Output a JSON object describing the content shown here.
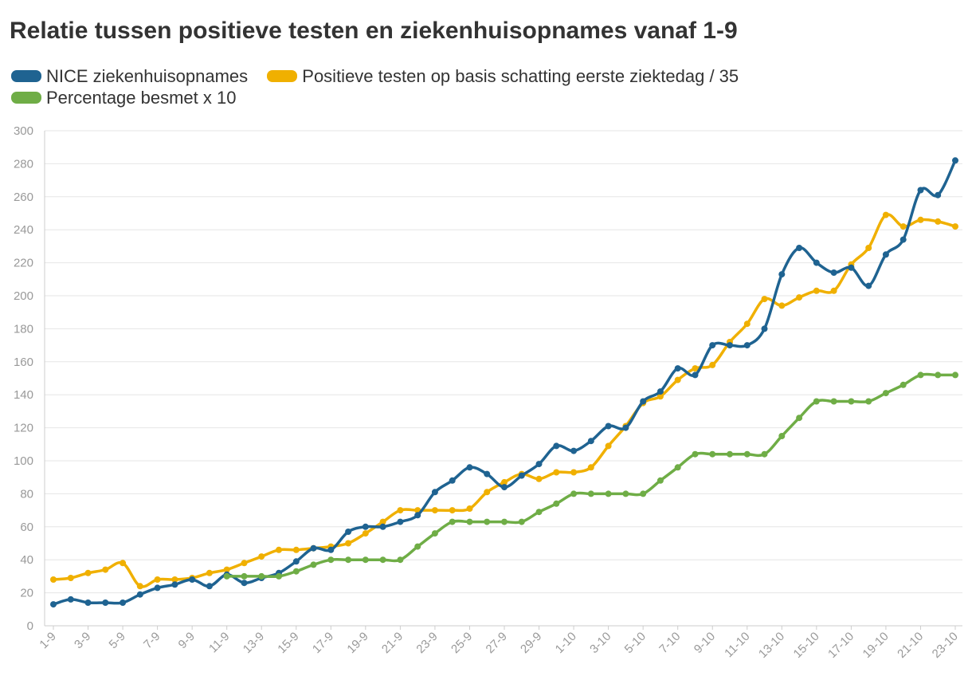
{
  "chart_data": {
    "type": "line",
    "title": "Relatie tussen positieve testen en ziekenhuisopnames vanaf 1-9",
    "xlabel": "",
    "ylabel": "",
    "ylim": [
      0,
      300
    ],
    "y_ticks": [
      0,
      20,
      40,
      60,
      80,
      100,
      120,
      140,
      160,
      180,
      200,
      220,
      240,
      260,
      280,
      300
    ],
    "grid": true,
    "legend_position": "top-left",
    "x": [
      "1-9",
      "2-9",
      "3-9",
      "4-9",
      "5-9",
      "6-9",
      "7-9",
      "8-9",
      "9-9",
      "10-9",
      "11-9",
      "12-9",
      "13-9",
      "14-9",
      "15-9",
      "16-9",
      "17-9",
      "18-9",
      "19-9",
      "20-9",
      "21-9",
      "22-9",
      "23-9",
      "24-9",
      "25-9",
      "26-9",
      "27-9",
      "28-9",
      "29-9",
      "30-9",
      "1-10",
      "2-10",
      "3-10",
      "4-10",
      "5-10",
      "6-10",
      "7-10",
      "8-10",
      "9-10",
      "10-10",
      "11-10",
      "12-10",
      "13-10",
      "14-10",
      "15-10",
      "16-10",
      "17-10",
      "18-10",
      "19-10",
      "20-10",
      "21-10",
      "22-10",
      "23-10"
    ],
    "x_tick_labels": [
      "1-9",
      "3-9",
      "5-9",
      "7-9",
      "9-9",
      "11-9",
      "13-9",
      "15-9",
      "17-9",
      "19-9",
      "21-9",
      "23-9",
      "25-9",
      "27-9",
      "29-9",
      "1-10",
      "3-10",
      "5-10",
      "7-10",
      "9-10",
      "11-10",
      "13-10",
      "15-10",
      "17-10",
      "19-10",
      "21-10",
      "23-10"
    ],
    "series": [
      {
        "name": "NICE ziekenhuisopnames",
        "color": "#1f6391",
        "values": [
          13,
          16,
          14,
          14,
          14,
          19,
          23,
          25,
          28,
          24,
          31,
          26,
          29,
          32,
          39,
          47,
          46,
          57,
          60,
          60,
          63,
          67,
          81,
          88,
          96,
          92,
          84,
          91,
          98,
          109,
          106,
          112,
          121,
          120,
          136,
          142,
          156,
          152,
          170,
          170,
          170,
          180,
          213,
          229,
          220,
          214,
          217,
          206,
          225,
          234,
          264,
          261,
          282
        ]
      },
      {
        "name": "Positieve testen op basis schatting eerste ziektedag / 35",
        "color": "#f0b000",
        "values": [
          28,
          29,
          32,
          34,
          38,
          24,
          28,
          28,
          29,
          32,
          34,
          38,
          42,
          46,
          46,
          47,
          48,
          50,
          56,
          63,
          70,
          70,
          70,
          70,
          71,
          81,
          87,
          92,
          89,
          93,
          93,
          96,
          109,
          121,
          135,
          139,
          149,
          156,
          158,
          172,
          183,
          198,
          194,
          199,
          203,
          203,
          219,
          229,
          249,
          242,
          246,
          245,
          242
        ]
      },
      {
        "name": "Percentage besmet x 10",
        "color": "#6fad46",
        "values": [
          null,
          null,
          null,
          null,
          null,
          null,
          null,
          null,
          null,
          null,
          30,
          30,
          30,
          30,
          33,
          37,
          40,
          40,
          40,
          40,
          40,
          48,
          56,
          63,
          63,
          63,
          63,
          63,
          69,
          74,
          80,
          80,
          80,
          80,
          80,
          88,
          96,
          104,
          104,
          104,
          104,
          104,
          115,
          126,
          136,
          136,
          136,
          136,
          141,
          146,
          152,
          152,
          152
        ]
      }
    ]
  }
}
